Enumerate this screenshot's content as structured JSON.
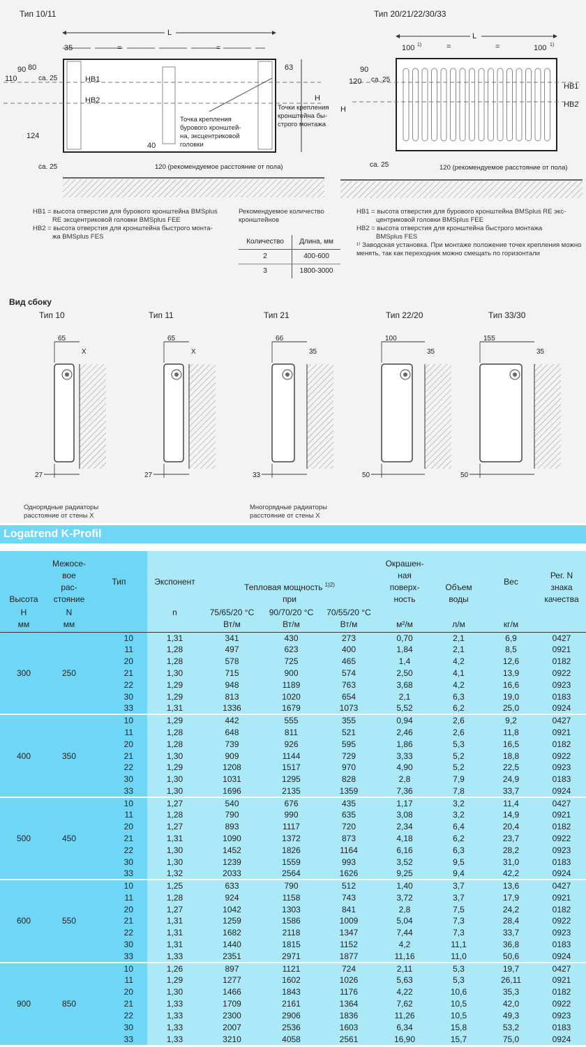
{
  "drawing_left": {
    "title": "Тип 10/11",
    "dims": [
      "L",
      "35",
      "=",
      "=",
      "90",
      "80",
      "110",
      "са. 25",
      "HB1",
      "HB2",
      "124",
      "са. 25",
      "40",
      "63",
      "H"
    ],
    "callout1": [
      "Точка крепления",
      "бурового кронштей-",
      "на, эксцентриковой",
      "головки"
    ],
    "callout2": [
      "Точки крепления",
      "кронштейна бы-",
      "строго монтажа"
    ],
    "floor_note": "120 (рекомендуемое расстояние от пола)"
  },
  "drawing_right": {
    "title": "Тип 20/21/22/30/33",
    "dims": [
      "L",
      "100",
      "1)",
      "=",
      "=",
      "100",
      "1)",
      "90",
      "120",
      "са. 25",
      "HB1",
      "HB2",
      "H",
      "са. 25"
    ],
    "floor_note": "120 (рекомендуемое расстояние от пола)"
  },
  "notes_left": {
    "hb1": "HB1 = высота отверстия для бурового кронштейна BMSplus",
    "hb1_cont": "RE эксцентриковой головки BMSplus FEE",
    "hb2": "HB2 = высота отверстия для кронштейна быстрого монта-",
    "hb2_cont": "жа BMSplus FES"
  },
  "brackets": {
    "title": "Рекомендуемое количество кронштейнов",
    "headers": [
      "Количество",
      "Длина, мм"
    ],
    "rows": [
      [
        "2",
        "400-600"
      ],
      [
        "3",
        "1800-3000"
      ]
    ]
  },
  "notes_right": {
    "hb1": "HB1 = высота отверстия для бурового кронштейна BMSplus RE экс-",
    "hb1_cont": "центриковой головки BMSplus FEE",
    "hb2": "HB2 = высота отверстия для кронштейна быстрого монтажа",
    "hb2_cont": "BMSplus FES",
    "footnote": "¹⁾ Заводская установка. При монтаже положение точек крепления можно менять, так как переходник можно смещать по горизонтали"
  },
  "side_view": {
    "title": "Вид сбоку",
    "types": [
      {
        "title": "Тип 10",
        "top_dim": "65",
        "wall_dim": "X",
        "bottom_dim": "27"
      },
      {
        "title": "Тип 11",
        "top_dim": "65",
        "wall_dim": "X",
        "bottom_dim": "27"
      },
      {
        "title": "Тип 21",
        "top_dim": "66",
        "wall_dim": "35",
        "bottom_dim": "33"
      },
      {
        "title": "Тип 22/20",
        "top_dim": "100",
        "wall_dim": "35",
        "bottom_dim": "50"
      },
      {
        "title": "Тип 33/30",
        "top_dim": "155",
        "wall_dim": "35",
        "bottom_dim": "50"
      }
    ],
    "caption_single": [
      "Однорядные радиаторы",
      "расстояние от стены X"
    ],
    "caption_multi": [
      "Многорядные радиаторы",
      "расстояние от стены X"
    ]
  },
  "section_title": "Logatrend K-Profil",
  "colors": {
    "accent": "#6fd6f5",
    "table_bg": "#abe8f8"
  },
  "table": {
    "headers": {
      "height": [
        "Высота"
      ],
      "spacing": [
        "Межосе-",
        "вое",
        "рас-",
        "стояние"
      ],
      "type": "Тип",
      "exponent": "Экспонент",
      "power": "Тепловая мощность",
      "power_sup": "1)2)",
      "power_sub": "при",
      "surface": [
        "Окрашен-",
        "ная",
        "поверх-",
        "ность"
      ],
      "water": [
        "Объем",
        "воды"
      ],
      "weight": "Вес",
      "reg": [
        "Рег. N",
        "знака",
        "качества"
      ]
    },
    "units": {
      "height": [
        "H",
        "мм"
      ],
      "spacing": [
        "N",
        "мм"
      ],
      "exponent": "n",
      "p1": [
        "75/65/20 °C",
        "Вт/м"
      ],
      "p2": [
        "90/70/20 °C",
        "Вт/м"
      ],
      "p3": [
        "70/55/20 °C",
        "Вт/м"
      ],
      "surface": "м²/м",
      "water": "л/м",
      "weight": "кг/м"
    },
    "groups": [
      {
        "height": "300",
        "spacing": "250",
        "rows": [
          [
            "10",
            "1,31",
            "341",
            "430",
            "273",
            "0,70",
            "2,1",
            "6,9",
            "0427"
          ],
          [
            "11",
            "1,28",
            "497",
            "623",
            "400",
            "1,84",
            "2,1",
            "8,5",
            "0921"
          ],
          [
            "20",
            "1,28",
            "578",
            "725",
            "465",
            "1,4",
            "4,2",
            "12,6",
            "0182"
          ],
          [
            "21",
            "1,30",
            "715",
            "900",
            "574",
            "2,50",
            "4,1",
            "13,9",
            "0922"
          ],
          [
            "22",
            "1,29",
            "948",
            "1189",
            "763",
            "3,68",
            "4,2",
            "16,6",
            "0923"
          ],
          [
            "30",
            "1,29",
            "813",
            "1020",
            "654",
            "2,1",
            "6,3",
            "19,0",
            "0183"
          ],
          [
            "33",
            "1,31",
            "1336",
            "1679",
            "1073",
            "5,52",
            "6,2",
            "25,0",
            "0924"
          ]
        ]
      },
      {
        "height": "400",
        "spacing": "350",
        "rows": [
          [
            "10",
            "1,29",
            "442",
            "555",
            "355",
            "0,94",
            "2,6",
            "9,2",
            "0427"
          ],
          [
            "11",
            "1,28",
            "648",
            "811",
            "521",
            "2,46",
            "2,6",
            "11,8",
            "0921"
          ],
          [
            "20",
            "1,28",
            "739",
            "926",
            "595",
            "1,86",
            "5,3",
            "16,5",
            "0182"
          ],
          [
            "21",
            "1,30",
            "909",
            "1144",
            "729",
            "3,33",
            "5,2",
            "18,8",
            "0922"
          ],
          [
            "22",
            "1,29",
            "1208",
            "1517",
            "970",
            "4,90",
            "5,2",
            "22,5",
            "0923"
          ],
          [
            "30",
            "1,30",
            "1031",
            "1295",
            "828",
            "2,8",
            "7,9",
            "24,9",
            "0183"
          ],
          [
            "33",
            "1,30",
            "1696",
            "2135",
            "1359",
            "7,36",
            "7,8",
            "33,7",
            "0924"
          ]
        ]
      },
      {
        "height": "500",
        "spacing": "450",
        "rows": [
          [
            "10",
            "1,27",
            "540",
            "676",
            "435",
            "1,17",
            "3,2",
            "11,4",
            "0427"
          ],
          [
            "11",
            "1,28",
            "790",
            "990",
            "635",
            "3,08",
            "3,2",
            "14,9",
            "0921"
          ],
          [
            "20",
            "1,27",
            "893",
            "1117",
            "720",
            "2,34",
            "6,4",
            "20,4",
            "0182"
          ],
          [
            "21",
            "1,31",
            "1090",
            "1372",
            "873",
            "4,18",
            "6,2",
            "23,7",
            "0922"
          ],
          [
            "22",
            "1,30",
            "1452",
            "1826",
            "1164",
            "6,16",
            "6,3",
            "28,2",
            "0923"
          ],
          [
            "30",
            "1,30",
            "1239",
            "1559",
            "993",
            "3,52",
            "9,5",
            "31,0",
            "0183"
          ],
          [
            "33",
            "1,32",
            "2033",
            "2564",
            "1626",
            "9,25",
            "9,4",
            "42,2",
            "0924"
          ]
        ]
      },
      {
        "height": "600",
        "spacing": "550",
        "rows": [
          [
            "10",
            "1,25",
            "633",
            "790",
            "512",
            "1,40",
            "3,7",
            "13,6",
            "0427"
          ],
          [
            "11",
            "1,28",
            "924",
            "1158",
            "743",
            "3,72",
            "3,7",
            "17,9",
            "0921"
          ],
          [
            "20",
            "1,27",
            "1042",
            "1303",
            "841",
            "2,8",
            "7,5",
            "24,2",
            "0182"
          ],
          [
            "21",
            "1,31",
            "1259",
            "1586",
            "1009",
            "5,04",
            "7,3",
            "28,4",
            "0922"
          ],
          [
            "22",
            "1,31",
            "1682",
            "2118",
            "1347",
            "7,44",
            "7,3",
            "33,7",
            "0923"
          ],
          [
            "30",
            "1,31",
            "1440",
            "1815",
            "1152",
            "4,2",
            "11,1",
            "36,8",
            "0183"
          ],
          [
            "33",
            "1,33",
            "2351",
            "2971",
            "1877",
            "11,16",
            "11,0",
            "50,6",
            "0924"
          ]
        ]
      },
      {
        "height": "900",
        "spacing": "850",
        "rows": [
          [
            "10",
            "1,26",
            "897",
            "1121",
            "724",
            "2,11",
            "5,3",
            "19,7",
            "0427"
          ],
          [
            "11",
            "1,29",
            "1277",
            "1602",
            "1026",
            "5,63",
            "5,3",
            "26,11",
            "0921"
          ],
          [
            "20",
            "1,30",
            "1466",
            "1843",
            "1176",
            "4,22",
            "10,6",
            "35,3",
            "0182"
          ],
          [
            "21",
            "1,33",
            "1709",
            "2161",
            "1364",
            "7,62",
            "10,5",
            "42,0",
            "0922"
          ],
          [
            "22",
            "1,33",
            "2300",
            "2906",
            "1836",
            "11,26",
            "10,5",
            "49,3",
            "0923"
          ],
          [
            "30",
            "1,33",
            "2007",
            "2536",
            "1603",
            "6,34",
            "15,8",
            "53,2",
            "0183"
          ],
          [
            "33",
            "1,33",
            "3210",
            "4058",
            "2561",
            "16,90",
            "15,7",
            "75,0",
            "0924"
          ]
        ]
      }
    ]
  }
}
